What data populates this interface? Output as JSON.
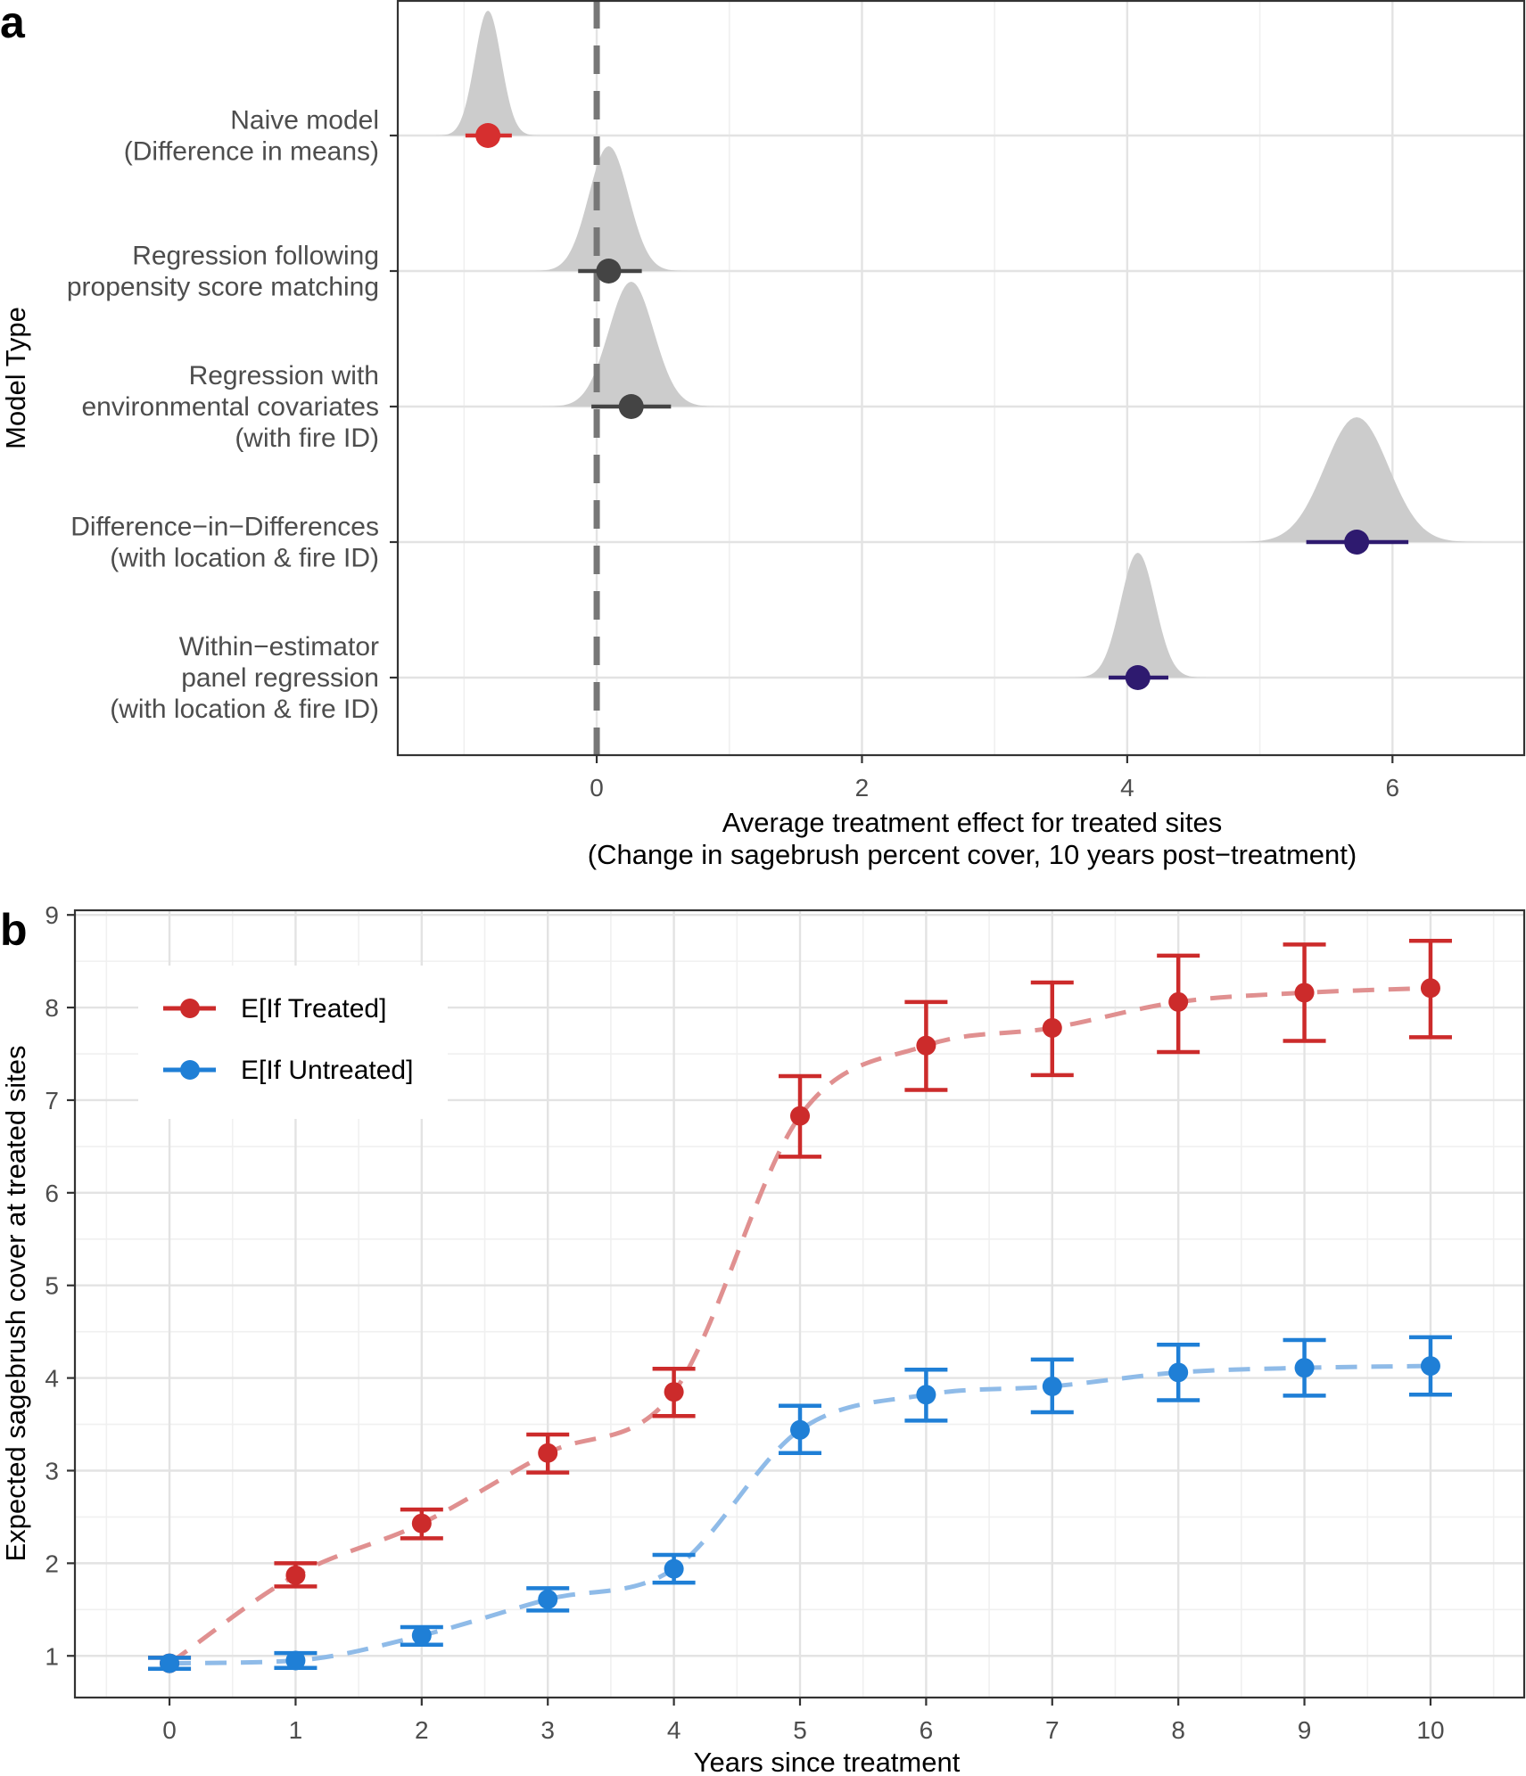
{
  "chart_data": [
    {
      "panel": "a",
      "type": "scatter",
      "subtype": "point-interval with posterior density",
      "ylabel": "Model Type",
      "xlabel_lines": [
        "Average treatment effect for treated sites",
        "(Change in sagebrush percent cover, 10 years post−treatment)"
      ],
      "xlim": [
        -1.5,
        7.0
      ],
      "xticks": [
        0,
        2,
        4,
        6
      ],
      "xtick_labels": [
        "0",
        "2",
        "4",
        "6"
      ],
      "reference_line": 0,
      "grid": true,
      "models": [
        {
          "label_lines": [
            "Naive model",
            "(Difference in means)"
          ],
          "estimate": -0.82,
          "lower": -0.99,
          "upper": -0.64,
          "sd": 0.1,
          "color": "#d62f2f"
        },
        {
          "label_lines": [
            "Regression following",
            "propensity score matching"
          ],
          "estimate": 0.09,
          "lower": -0.14,
          "upper": 0.34,
          "sd": 0.15,
          "color": "#444444"
        },
        {
          "label_lines": [
            "Regression with",
            "environmental covariates",
            "(with fire ID)"
          ],
          "estimate": 0.26,
          "lower": -0.04,
          "upper": 0.56,
          "sd": 0.17,
          "color": "#444444"
        },
        {
          "label_lines": [
            "Difference−in−Differences",
            "(with location & fire ID)"
          ],
          "estimate": 5.73,
          "lower": 5.35,
          "upper": 6.12,
          "sd": 0.24,
          "color": "#2e1a6f"
        },
        {
          "label_lines": [
            "Within−estimator",
            "panel regression",
            "(with location & fire ID)"
          ],
          "estimate": 4.08,
          "lower": 3.86,
          "upper": 4.31,
          "sd": 0.13,
          "color": "#2e1a6f"
        }
      ]
    },
    {
      "panel": "b",
      "type": "line",
      "subtype": "dashed lines with points and error bars",
      "xlabel": "Years since treatment",
      "ylabel": "Expected sagebrush cover at treated sites",
      "xlim": [
        -0.75,
        10.75
      ],
      "ylim": [
        0.55,
        9.05
      ],
      "xticks": [
        0,
        1,
        2,
        3,
        4,
        5,
        6,
        7,
        8,
        9,
        10
      ],
      "yticks": [
        1,
        2,
        3,
        4,
        5,
        6,
        7,
        8,
        9
      ],
      "grid": true,
      "legend_position": "top-left",
      "series": [
        {
          "name": "E[If Treated]",
          "color": "#cc2b2b",
          "line_color": "#e09090",
          "x": [
            0,
            1,
            2,
            3,
            4,
            5,
            6,
            7,
            8,
            9,
            10
          ],
          "y": [
            0.92,
            1.87,
            2.43,
            3.19,
            3.85,
            6.83,
            7.59,
            7.78,
            8.06,
            8.16,
            8.21
          ],
          "lower": [
            0.86,
            1.75,
            2.27,
            2.98,
            3.59,
            6.39,
            7.11,
            7.27,
            7.52,
            7.64,
            7.68
          ],
          "upper": [
            0.98,
            2.0,
            2.58,
            3.39,
            4.1,
            7.26,
            8.06,
            8.27,
            8.56,
            8.68,
            8.72
          ]
        },
        {
          "name": "E[If Untreated]",
          "color": "#1f7fd6",
          "line_color": "#8fbbe8",
          "x": [
            0,
            1,
            2,
            3,
            4,
            5,
            6,
            7,
            8,
            9,
            10
          ],
          "y": [
            0.92,
            0.95,
            1.22,
            1.61,
            1.94,
            3.44,
            3.82,
            3.91,
            4.06,
            4.11,
            4.13
          ],
          "lower": [
            0.86,
            0.87,
            1.12,
            1.49,
            1.79,
            3.19,
            3.54,
            3.63,
            3.76,
            3.81,
            3.82
          ],
          "upper": [
            0.98,
            1.03,
            1.31,
            1.73,
            2.09,
            3.7,
            4.09,
            4.2,
            4.36,
            4.41,
            4.44
          ]
        }
      ]
    }
  ]
}
